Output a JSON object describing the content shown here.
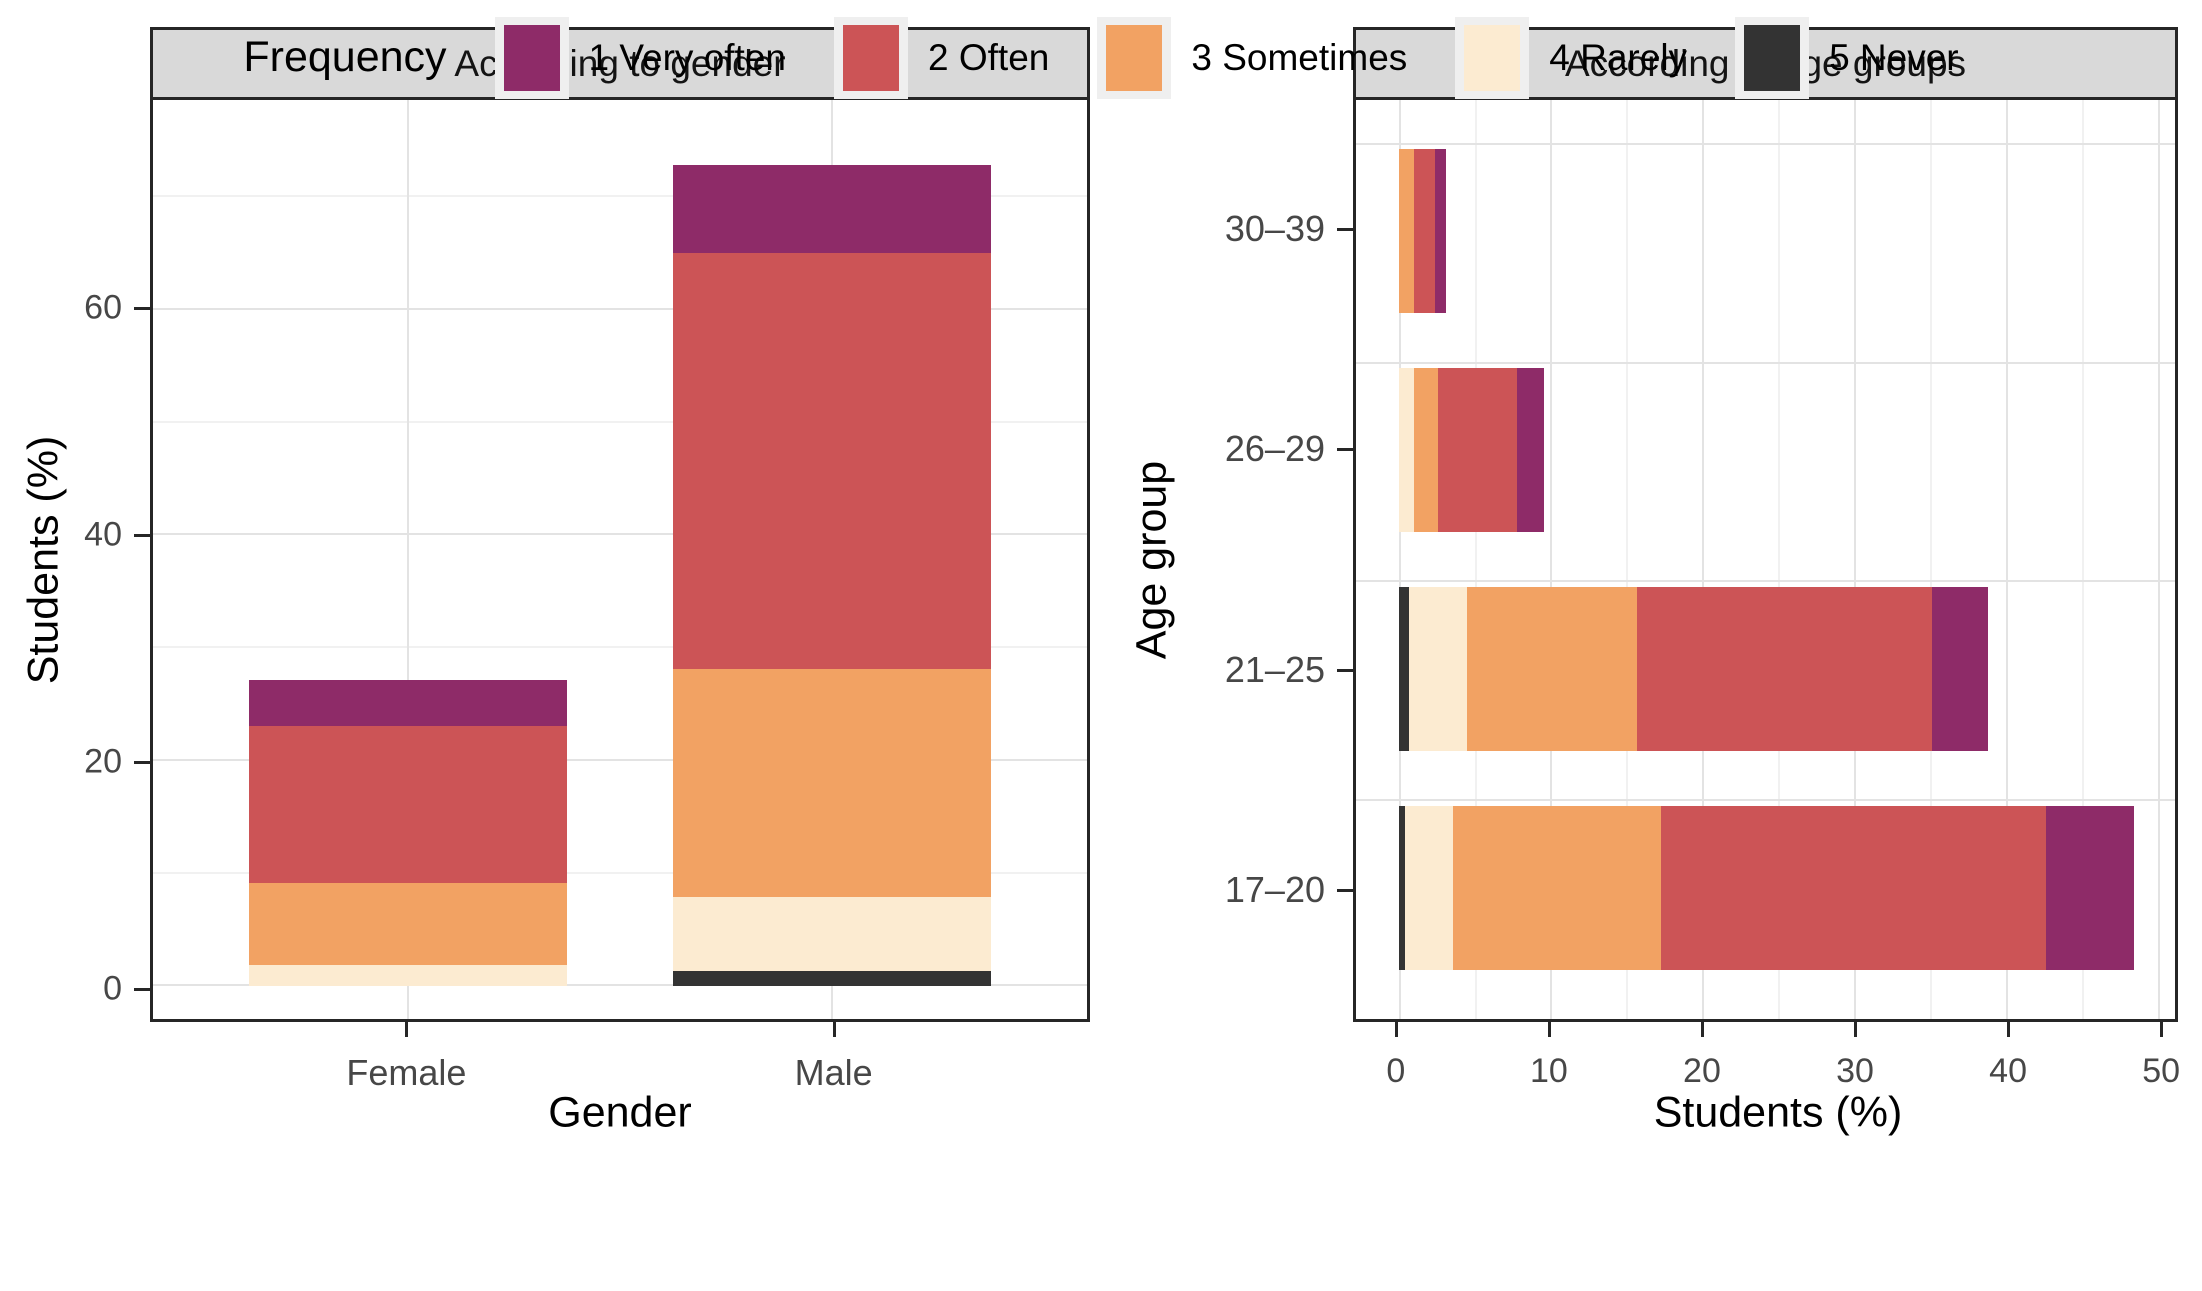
{
  "panels": [
    {
      "strip": "According to gender",
      "x_title": "Gender",
      "y_title": "Students (%)",
      "y_tick_labels": [
        "0",
        "20",
        "40",
        "60"
      ],
      "categories": [
        "Female",
        "Male"
      ]
    },
    {
      "strip": "According to age groups",
      "x_title": "Students (%)",
      "y_title": "Age group",
      "x_tick_labels": [
        "0",
        "10",
        "20",
        "30",
        "40",
        "50"
      ],
      "categories": [
        "17–20",
        "21–25",
        "26–29",
        "30–39"
      ]
    }
  ],
  "legend": {
    "title": "Frequency",
    "items": [
      {
        "label": "1 Very often",
        "color": "#8E2B68"
      },
      {
        "label": "2 Often",
        "color": "#CC5456"
      },
      {
        "label": "3 Sometimes",
        "color": "#F2A263"
      },
      {
        "label": "4 Rarely",
        "color": "#FCEBD1"
      },
      {
        "label": "5 Never",
        "color": "#333333"
      }
    ]
  },
  "colors": {
    "strip_bg": "#D9D9D9",
    "panel_border": "#262626",
    "grid_major": "#E3E3E3",
    "grid_minor": "#F1F1F1",
    "tick_text": "#474747",
    "legend_key_bg": "#EFEFEF"
  },
  "chart_data": [
    {
      "type": "bar",
      "orientation": "vertical",
      "stacked": true,
      "title": "According to gender",
      "xlabel": "Gender",
      "ylabel": "Students (%)",
      "categories": [
        "Female",
        "Male"
      ],
      "series": [
        {
          "name": "1 Very often",
          "color": "#8E2B68",
          "values": [
            4.1,
            7.8
          ]
        },
        {
          "name": "2 Often",
          "color": "#CC5456",
          "values": [
            13.9,
            36.9
          ]
        },
        {
          "name": "3 Sometimes",
          "color": "#F2A263",
          "values": [
            7.3,
            20.2
          ]
        },
        {
          "name": "4 Rarely",
          "color": "#FCEBD1",
          "values": [
            1.9,
            6.5
          ]
        },
        {
          "name": "5 Never",
          "color": "#333333",
          "values": [
            0,
            1.4
          ]
        }
      ],
      "stack_order_bottom_to_top": [
        "5 Never",
        "4 Rarely",
        "3 Sometimes",
        "2 Often",
        "1 Very often"
      ],
      "totals": [
        27.2,
        72.8
      ],
      "ylim": [
        0,
        76
      ],
      "yticks": [
        0,
        20,
        40,
        60
      ],
      "yticks_minor": [
        10,
        30,
        50,
        70
      ],
      "grid": true,
      "legend_position": "bottom"
    },
    {
      "type": "bar",
      "orientation": "horizontal",
      "stacked": true,
      "title": "According to age groups",
      "xlabel": "Students (%)",
      "ylabel": "Age group",
      "categories": [
        "17–20",
        "21–25",
        "26–29",
        "30–39"
      ],
      "series": [
        {
          "name": "1 Very often",
          "color": "#8E2B68",
          "values": [
            5.8,
            3.7,
            1.8,
            0.7
          ]
        },
        {
          "name": "2 Often",
          "color": "#CC5456",
          "values": [
            25.3,
            19.4,
            5.2,
            1.4
          ]
        },
        {
          "name": "3 Sometimes",
          "color": "#F2A263",
          "values": [
            13.7,
            11.2,
            1.6,
            1.0
          ]
        },
        {
          "name": "4 Rarely",
          "color": "#FCEBD1",
          "values": [
            3.2,
            3.8,
            1.0,
            0
          ]
        },
        {
          "name": "5 Never",
          "color": "#333333",
          "values": [
            0.4,
            0.7,
            0,
            0
          ]
        }
      ],
      "stack_order_left_to_right": [
        "5 Never",
        "4 Rarely",
        "3 Sometimes",
        "2 Often",
        "1 Very often"
      ],
      "totals": [
        48.4,
        38.8,
        9.6,
        3.1
      ],
      "xlim": [
        0,
        50
      ],
      "xticks": [
        0,
        10,
        20,
        30,
        40,
        50
      ],
      "xticks_minor": [
        5,
        15,
        25,
        35,
        45
      ],
      "grid": true,
      "legend_position": "bottom"
    }
  ]
}
